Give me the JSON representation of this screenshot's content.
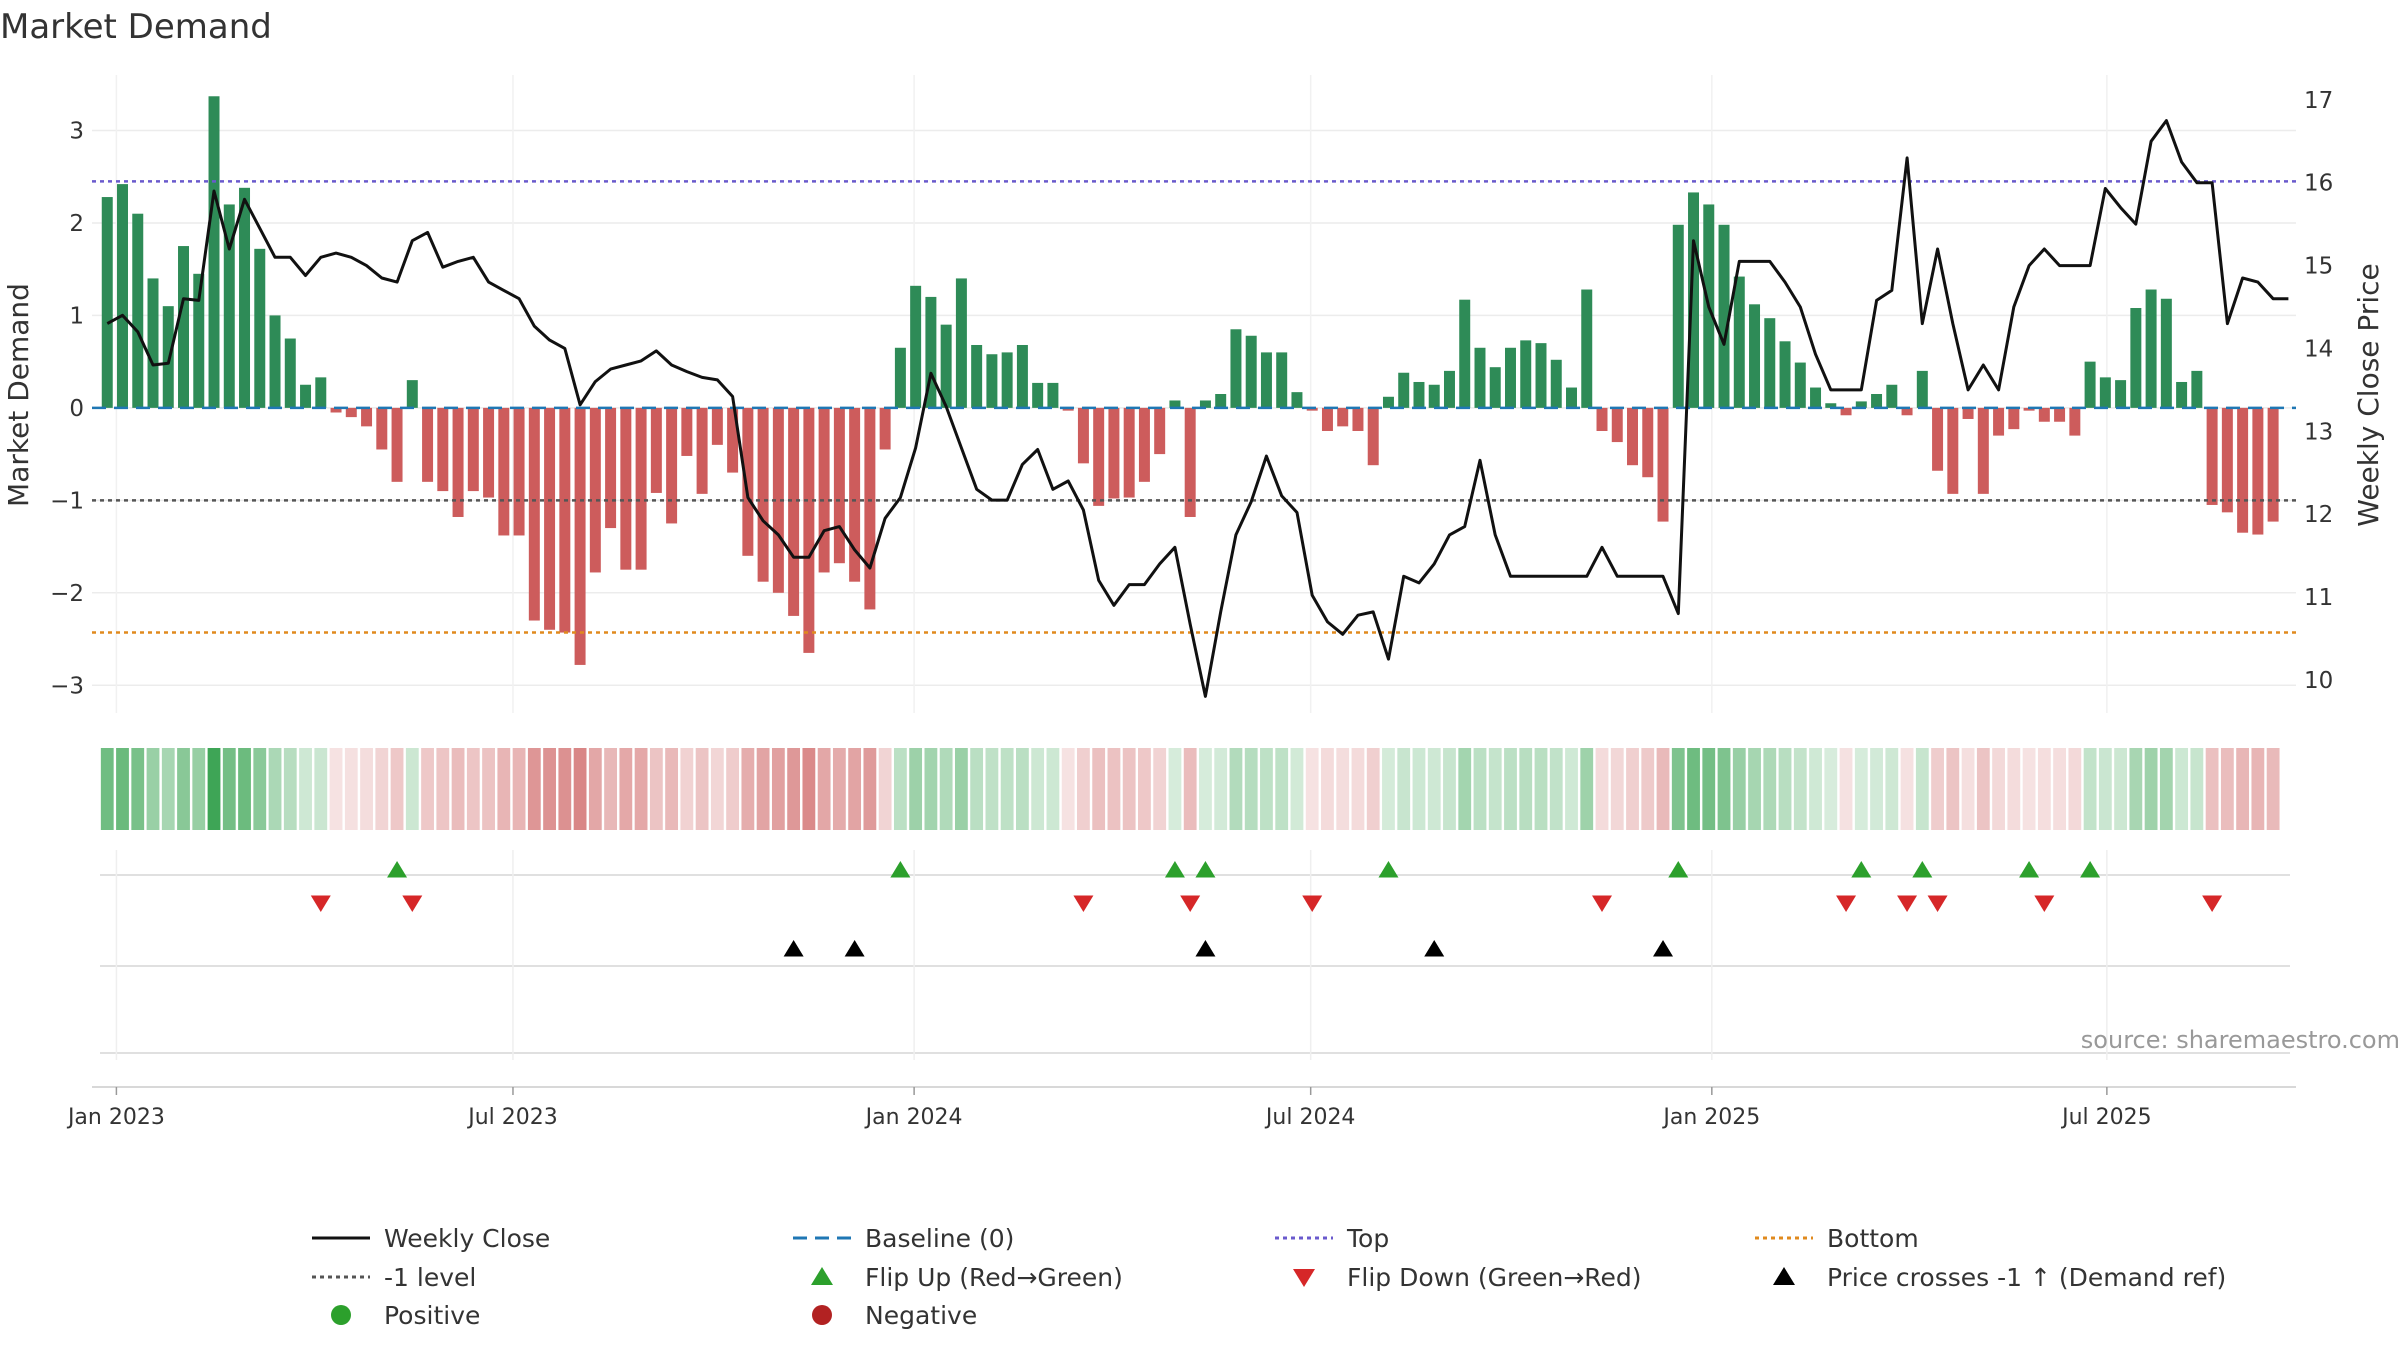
{
  "title": "Market Demand",
  "source": "source: sharemaestro.com",
  "colors": {
    "positive": "#2e8b57",
    "negative": "#cd5c5c",
    "price": "#111111",
    "baseline": "#1f77b4",
    "top": "#6a5acd",
    "bottom": "#e08a1e",
    "minus_one": "#555555",
    "flip_up": "#2ca02c",
    "flip_down": "#d62728",
    "cross": "#000000",
    "legend_positive": "#2ca02c",
    "legend_negative": "#b22222"
  },
  "chart_data": {
    "type": "bar",
    "title": "Market Demand",
    "ylabel_left": "Market Demand",
    "ylabel_right": "Weekly Close Price",
    "ylim_left": [
      -3.3,
      3.6
    ],
    "ylim_right": [
      9.6,
      17.3
    ],
    "yticks_left": [
      -3,
      -2,
      -1,
      0,
      1,
      2,
      3
    ],
    "ytick_labels_left": [
      "−3",
      "−2",
      "−1",
      "0",
      "1",
      "2",
      "3"
    ],
    "yticks_right": [
      10,
      11,
      12,
      13,
      14,
      15,
      16,
      17
    ],
    "ytick_labels_right": [
      "10",
      "11",
      "12",
      "13",
      "14",
      "15",
      "16",
      "17"
    ],
    "x_start_week": -1,
    "x_end_week": 143.5,
    "xticks": [
      {
        "label": "Jan 2023",
        "week": 0.6
      },
      {
        "label": "Jul 2023",
        "week": 26.6
      },
      {
        "label": "Jan 2024",
        "week": 52.9
      },
      {
        "label": "Jul 2024",
        "week": 78.9
      },
      {
        "label": "Jan 2025",
        "week": 105.2
      },
      {
        "label": "Jul 2025",
        "week": 131.1
      }
    ],
    "levels": {
      "top": 2.45,
      "bottom": -2.43,
      "minus_one": -1.0,
      "baseline": 0
    },
    "demand": [
      2.28,
      2.42,
      2.1,
      1.4,
      1.1,
      1.75,
      1.45,
      3.37,
      2.2,
      2.38,
      1.72,
      1.0,
      0.75,
      0.25,
      0.33,
      -0.05,
      -0.1,
      -0.2,
      -0.45,
      -0.8,
      0.3,
      -0.8,
      -0.9,
      -1.18,
      -0.9,
      -0.97,
      -1.38,
      -1.38,
      -2.3,
      -2.4,
      -2.43,
      -2.78,
      -1.78,
      -1.3,
      -1.75,
      -1.75,
      -0.92,
      -1.25,
      -0.52,
      -0.93,
      -0.4,
      -0.7,
      -1.6,
      -1.88,
      -2.0,
      -2.25,
      -2.65,
      -1.78,
      -1.68,
      -1.88,
      -2.18,
      -0.45,
      0.65,
      1.32,
      1.2,
      0.9,
      1.4,
      0.68,
      0.58,
      0.6,
      0.68,
      0.27,
      0.27,
      -0.03,
      -0.6,
      -1.06,
      -0.98,
      -0.97,
      -0.8,
      -0.5,
      0.08,
      -1.18,
      0.08,
      0.15,
      0.85,
      0.78,
      0.6,
      0.6,
      0.17,
      -0.03,
      -0.25,
      -0.2,
      -0.25,
      -0.62,
      0.12,
      0.38,
      0.28,
      0.25,
      0.4,
      1.17,
      0.65,
      0.44,
      0.65,
      0.73,
      0.7,
      0.52,
      0.22,
      1.28,
      -0.25,
      -0.37,
      -0.62,
      -0.75,
      -1.23,
      1.98,
      2.33,
      2.2,
      1.98,
      1.42,
      1.12,
      0.97,
      0.72,
      0.49,
      0.22,
      0.05,
      -0.08,
      0.07,
      0.15,
      0.25,
      -0.08,
      0.4,
      -0.68,
      -0.93,
      -0.12,
      -0.93,
      -0.3,
      -0.23,
      -0.03,
      -0.15,
      -0.15,
      -0.3,
      0.5,
      0.33,
      0.3,
      1.08,
      1.28,
      1.18,
      0.28,
      0.4,
      -1.05,
      -1.13,
      -1.35,
      -1.37,
      -1.23
    ],
    "price": [
      14.3,
      14.4,
      14.2,
      13.8,
      13.82,
      14.6,
      14.58,
      15.9,
      15.2,
      15.8,
      15.45,
      15.1,
      15.1,
      14.88,
      15.1,
      15.15,
      15.1,
      15.0,
      14.85,
      14.8,
      15.3,
      15.4,
      14.98,
      15.05,
      15.1,
      14.8,
      14.7,
      14.6,
      14.27,
      14.1,
      14.0,
      13.32,
      13.6,
      13.75,
      13.8,
      13.85,
      13.97,
      13.8,
      13.72,
      13.65,
      13.62,
      13.42,
      12.2,
      11.92,
      11.75,
      11.48,
      11.48,
      11.8,
      11.85,
      11.57,
      11.35,
      11.95,
      12.2,
      12.8,
      13.7,
      13.3,
      12.8,
      12.3,
      12.17,
      12.17,
      12.6,
      12.78,
      12.3,
      12.4,
      12.05,
      11.2,
      10.9,
      11.15,
      11.15,
      11.4,
      11.6,
      10.67,
      9.8,
      10.82,
      11.75,
      12.15,
      12.7,
      12.22,
      12.02,
      11.02,
      10.7,
      10.55,
      10.78,
      10.82,
      10.25,
      11.25,
      11.17,
      11.4,
      11.75,
      11.85,
      12.65,
      11.75,
      11.25,
      11.25,
      11.25,
      11.25,
      11.25,
      11.25,
      11.6,
      11.25,
      11.25,
      11.25,
      11.25,
      10.8,
      15.3,
      14.5,
      14.05,
      15.05,
      15.05,
      15.05,
      14.8,
      14.5,
      13.93,
      13.5,
      13.5,
      13.5,
      14.58,
      14.7,
      16.3,
      14.3,
      15.2,
      14.3,
      13.5,
      13.8,
      13.5,
      14.5,
      15.0,
      15.2,
      15.0,
      15.0,
      15.0,
      15.93,
      15.7,
      15.5,
      16.5,
      16.75,
      16.25,
      16.0,
      16.0,
      14.3,
      14.85,
      14.8,
      14.6,
      14.6
    ],
    "flip_up_weeks": [
      19,
      52,
      70,
      72,
      84,
      103,
      115,
      119,
      126,
      130
    ],
    "flip_down_weeks": [
      14,
      20,
      64,
      71,
      79,
      98,
      114,
      118,
      120,
      127,
      138
    ],
    "cross_weeks": [
      45,
      49,
      72,
      87,
      102
    ],
    "legend": [
      {
        "label": "Weekly Close",
        "kind": "line-solid"
      },
      {
        "label": "Baseline (0)",
        "kind": "line-dash"
      },
      {
        "label": "Top",
        "kind": "line-dot-top"
      },
      {
        "label": "Bottom",
        "kind": "line-dot-bottom"
      },
      {
        "label": "-1 level",
        "kind": "line-dot-minus"
      },
      {
        "label": "Flip Up (Red→Green)",
        "kind": "tri-up-green"
      },
      {
        "label": "Flip Down (Green→Red)",
        "kind": "tri-down-red"
      },
      {
        "label": "Price crosses -1 ↑ (Demand ref)",
        "kind": "tri-up-black"
      },
      {
        "label": "Positive",
        "kind": "dot-green"
      },
      {
        "label": "Negative",
        "kind": "dot-red"
      }
    ]
  }
}
